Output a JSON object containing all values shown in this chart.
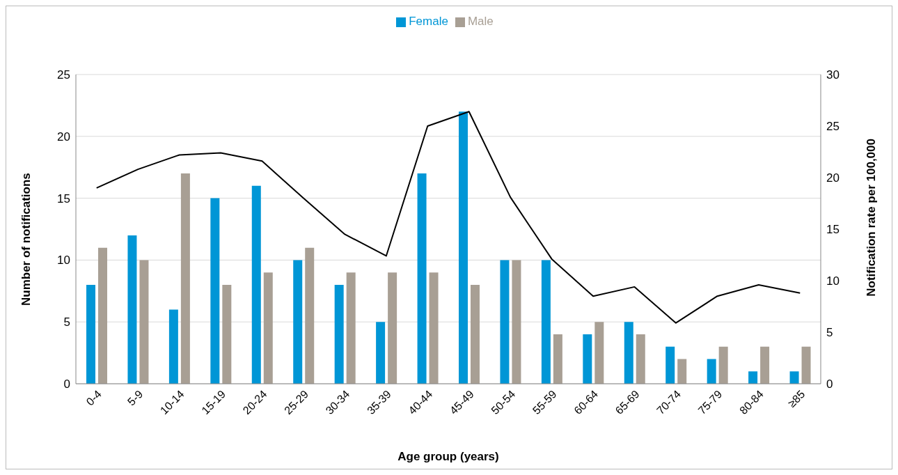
{
  "chart_data": {
    "type": "bar",
    "xlabel": "Age group (years)",
    "ylabel": "Number of notifications",
    "y2label": "Notification rate per 100,000",
    "categories": [
      "0-4",
      "5-9",
      "10-14",
      "15-19",
      "20-24",
      "25-29",
      "30-34",
      "35-39",
      "40-44",
      "45-49",
      "50-54",
      "55-59",
      "60-64",
      "65-69",
      "70-74",
      "75-79",
      "80-84",
      "≥85"
    ],
    "series": [
      {
        "name": "Female",
        "color": "#0096d6",
        "values": [
          8,
          12,
          6,
          15,
          16,
          10,
          8,
          5,
          17,
          22,
          10,
          10,
          4,
          5,
          3,
          2,
          1,
          1
        ]
      },
      {
        "name": "Male",
        "color": "#a89f94",
        "values": [
          11,
          10,
          17,
          8,
          9,
          11,
          9,
          9,
          9,
          8,
          10,
          4,
          5,
          4,
          2,
          3,
          3,
          3
        ]
      },
      {
        "type": "line",
        "axis": "y2",
        "color": "#000000",
        "marker": "none",
        "line_style": "solid",
        "values": [
          19.0,
          20.8,
          22.2,
          22.4,
          21.6,
          18.0,
          14.5,
          12.4,
          25.0,
          26.4,
          18.1,
          12.1,
          8.5,
          9.4,
          5.9,
          8.5,
          9.6,
          8.8
        ]
      }
    ],
    "ylim": [
      0,
      25
    ],
    "yticks": [
      0,
      5,
      10,
      15,
      20,
      25
    ],
    "y2lim": [
      0,
      30
    ],
    "y2ticks": [
      0,
      5,
      10,
      15,
      20,
      25,
      30
    ],
    "grid": "y",
    "legend": "top"
  }
}
